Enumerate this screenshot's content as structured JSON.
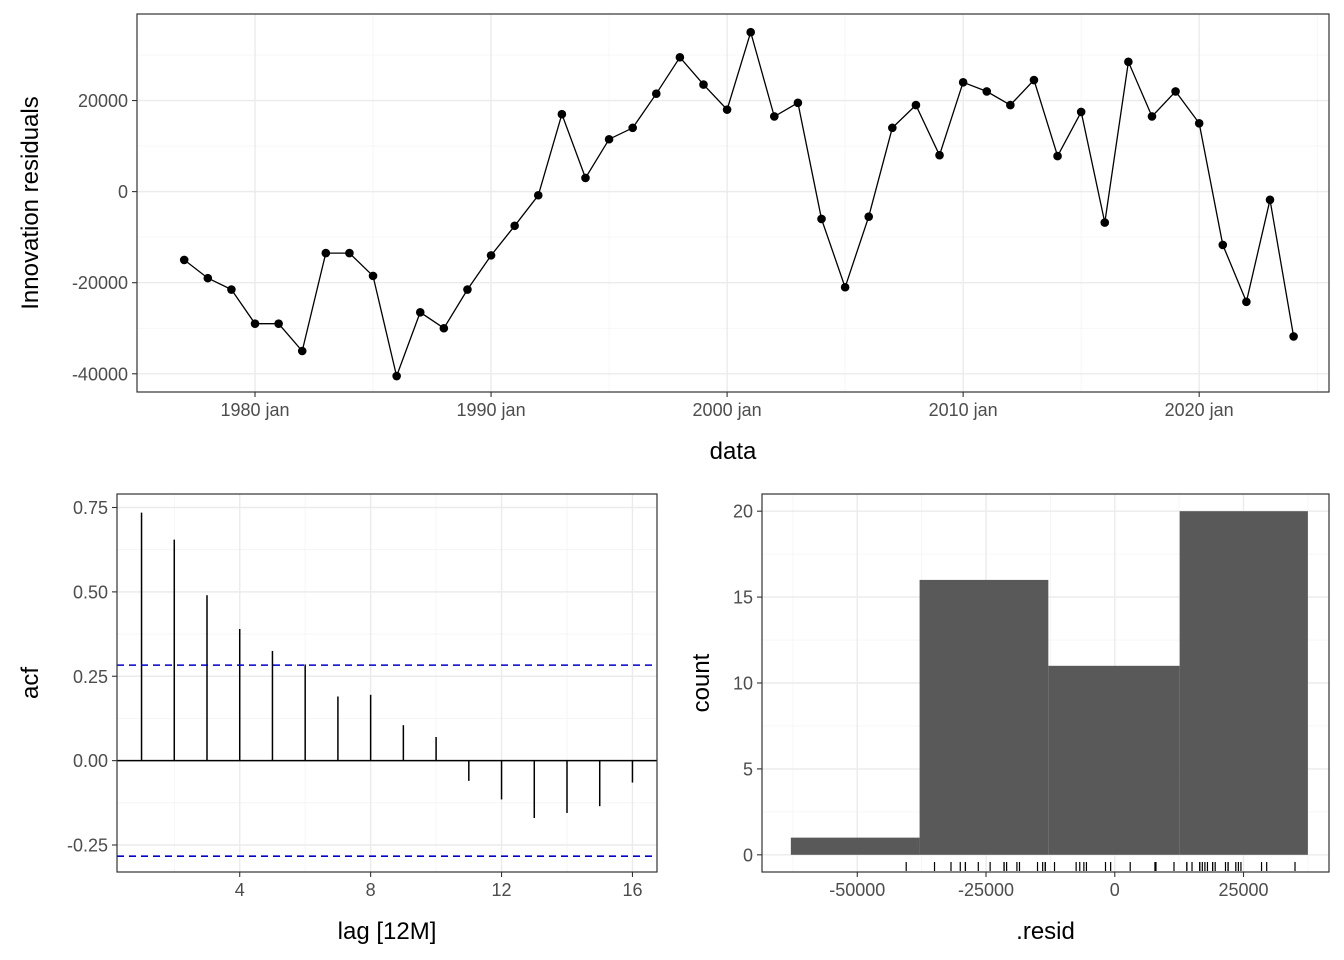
{
  "chart_data": [
    {
      "type": "line",
      "xlabel": "data",
      "ylabel": "Innovation residuals",
      "x_tick_labels": [
        "1980 jan",
        "1990 jan",
        "2000 jan",
        "2010 jan",
        "2020 jan"
      ],
      "x_ticks": [
        1980,
        1990,
        2000,
        2010,
        2020
      ],
      "y_tick_labels": [
        "20000",
        "0",
        "-20000",
        "-40000"
      ],
      "y_ticks": [
        20000,
        0,
        -20000,
        -40000
      ],
      "xlim": [
        1975,
        2025.5
      ],
      "ylim": [
        -44000,
        39000
      ],
      "grid": true,
      "markers": true,
      "series": [
        {
          "x": [
            1977,
            1978,
            1979,
            1980,
            1981,
            1982,
            1983,
            1984,
            1985,
            1986,
            1987,
            1988,
            1989,
            1990,
            1991,
            1992,
            1993,
            1994,
            1995,
            1996,
            1997,
            1998,
            1999,
            2000,
            2001,
            2002,
            2003,
            2004,
            2005,
            2006,
            2007,
            2008,
            2009,
            2010,
            2011,
            2012,
            2013,
            2014,
            2015,
            2016,
            2017,
            2018,
            2019,
            2020,
            2021,
            2022,
            2023,
            2024
          ],
          "values": [
            -15000,
            -19000,
            -21500,
            -29000,
            -29000,
            -35000,
            -13500,
            -13500,
            -18500,
            -40500,
            -26500,
            -30000,
            -21500,
            -14000,
            -7500,
            -800,
            17000,
            3000,
            11500,
            14000,
            21500,
            29500,
            23500,
            18000,
            35000,
            16500,
            19500,
            -6000,
            -21000,
            -5500,
            14000,
            19000,
            8000,
            24000,
            22000,
            19000,
            24500,
            7800,
            17500,
            -6800,
            28500,
            16500,
            22000,
            15000,
            -11700,
            -24200,
            -1800,
            -31800
          ]
        }
      ]
    },
    {
      "type": "bar",
      "xlabel": "lag [12M]",
      "ylabel": "acf",
      "x_tick_labels": [
        "4",
        "8",
        "12",
        "16"
      ],
      "x_ticks": [
        4,
        8,
        12,
        16
      ],
      "y_tick_labels": [
        "0.75",
        "0.50",
        "0.25",
        "0.00",
        "-0.25"
      ],
      "y_ticks": [
        0.75,
        0.5,
        0.25,
        0.0,
        -0.25
      ],
      "xlim": [
        0.25,
        16.75
      ],
      "ylim": [
        -0.33,
        0.79
      ],
      "grid": true,
      "categories": [
        1,
        2,
        3,
        4,
        5,
        6,
        7,
        8,
        9,
        10,
        11,
        12,
        13,
        14,
        15,
        16
      ],
      "values": [
        0.735,
        0.655,
        0.49,
        0.39,
        0.325,
        0.285,
        0.19,
        0.195,
        0.105,
        0.07,
        -0.06,
        -0.115,
        -0.17,
        -0.155,
        -0.135,
        -0.065
      ],
      "confidence_bounds": [
        0.283,
        -0.283
      ],
      "confidence_color": "#0000cc"
    },
    {
      "type": "bar",
      "xlabel": ".resid",
      "ylabel": "count",
      "x_tick_labels": [
        "-50000",
        "-25000",
        "0",
        "25000"
      ],
      "x_ticks": [
        -50000,
        -25000,
        0,
        25000
      ],
      "y_tick_labels": [
        "20",
        "15",
        "10",
        "5",
        "0"
      ],
      "y_ticks": [
        20,
        15,
        10,
        5,
        0
      ],
      "xlim": [
        -68500,
        41600
      ],
      "ylim": [
        -1,
        21
      ],
      "grid": true,
      "bins": [
        {
          "from": -62900,
          "to": -37900,
          "count": 1
        },
        {
          "from": -37900,
          "to": -12900,
          "count": 16
        },
        {
          "from": -12900,
          "to": 12600,
          "count": 11
        },
        {
          "from": 12600,
          "to": 37500,
          "count": 20
        }
      ],
      "bar_color": "#595959",
      "rug_x": [
        -40500,
        -35000,
        -31800,
        -30000,
        -29000,
        -29000,
        -26500,
        -24200,
        -21500,
        -21500,
        -21000,
        -19000,
        -18500,
        -15000,
        -14000,
        -13500,
        -13500,
        -11700,
        -7500,
        -6800,
        -6000,
        -5500,
        -1800,
        -800,
        3000,
        7800,
        8000,
        11500,
        14000,
        14000,
        15000,
        16500,
        16500,
        17000,
        17500,
        18000,
        19000,
        19000,
        19500,
        21500,
        22000,
        22000,
        23500,
        24000,
        24500,
        28500,
        29500,
        35000
      ]
    }
  ]
}
